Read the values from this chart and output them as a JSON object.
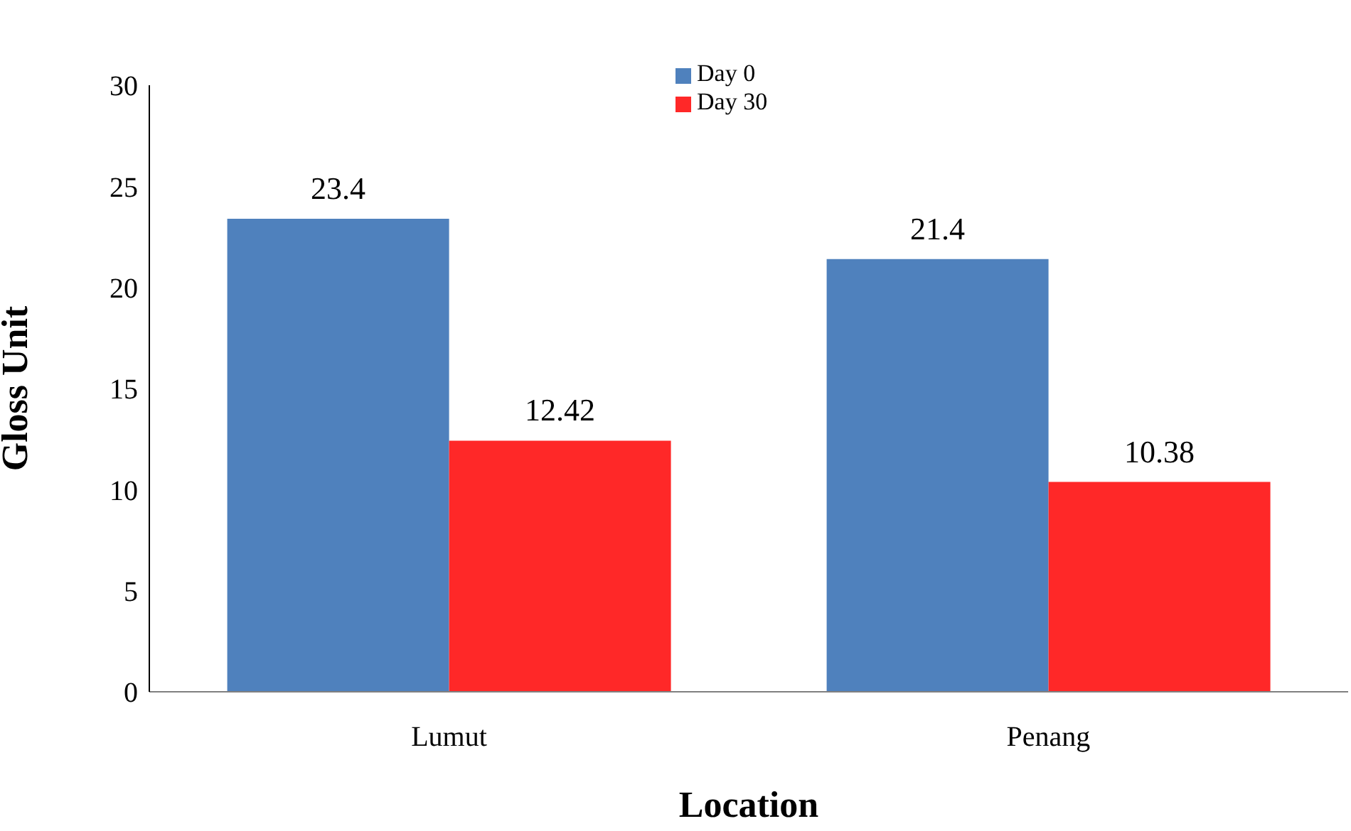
{
  "chart_data": {
    "type": "bar",
    "xlabel": "Location",
    "ylabel": "Gloss Unit",
    "categories": [
      "Lumut",
      "Penang"
    ],
    "series": [
      {
        "name": "Day 0",
        "color": "#4f81bd",
        "values": [
          23.4,
          21.4
        ]
      },
      {
        "name": "Day 30",
        "color": "#ff2828",
        "values": [
          12.42,
          10.38
        ]
      }
    ],
    "ylim": [
      0,
      30
    ],
    "yticks": [
      0,
      5,
      10,
      15,
      20,
      25,
      30
    ],
    "data_labels": true,
    "legend": "top",
    "grid": false
  }
}
